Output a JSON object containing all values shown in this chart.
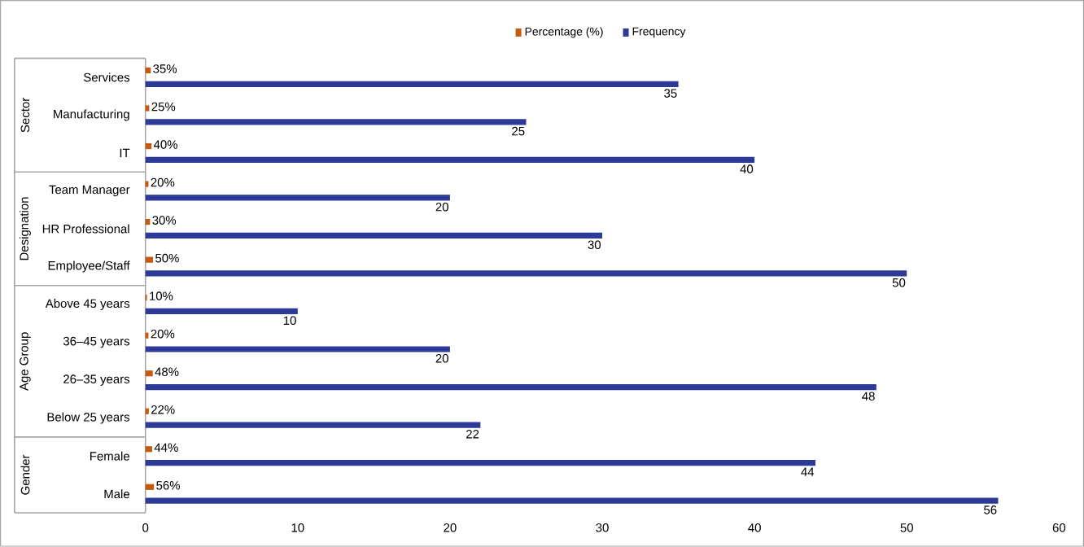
{
  "chart_data": {
    "type": "bar",
    "orientation": "horizontal",
    "legend": "top",
    "categories": [
      "Services",
      "Manufacturing",
      "IT",
      "Team Manager",
      "HR Professional",
      "Employee/Staff",
      "Above 45 years",
      "36–45 years",
      "26–35 years",
      "Below 25 years",
      "Female",
      "Male"
    ],
    "series": [
      {
        "name": "Percentage (%)",
        "color": "#c55a11",
        "values": [
          0.35,
          0.25,
          0.4,
          0.2,
          0.3,
          0.5,
          0.1,
          0.2,
          0.48,
          0.22,
          0.44,
          0.56
        ],
        "value_labels": [
          "35%",
          "25%",
          "40%",
          "20%",
          "30%",
          "50%",
          "10%",
          "20%",
          "48%",
          "22%",
          "44%",
          "56%"
        ]
      },
      {
        "name": "Frequency",
        "color": "#2e3a97",
        "values": [
          35,
          25,
          40,
          20,
          30,
          50,
          10,
          20,
          48,
          22,
          44,
          56
        ],
        "value_labels": [
          "35",
          "25",
          "40",
          "20",
          "30",
          "50",
          "10",
          "20",
          "48",
          "22",
          "44",
          "56"
        ]
      }
    ],
    "xlim": [
      0,
      60
    ],
    "xticks": [
      0,
      10,
      20,
      30,
      40,
      50,
      60
    ],
    "annotations": [
      "Sector",
      "Designation",
      "Age Group",
      "Gender"
    ]
  }
}
